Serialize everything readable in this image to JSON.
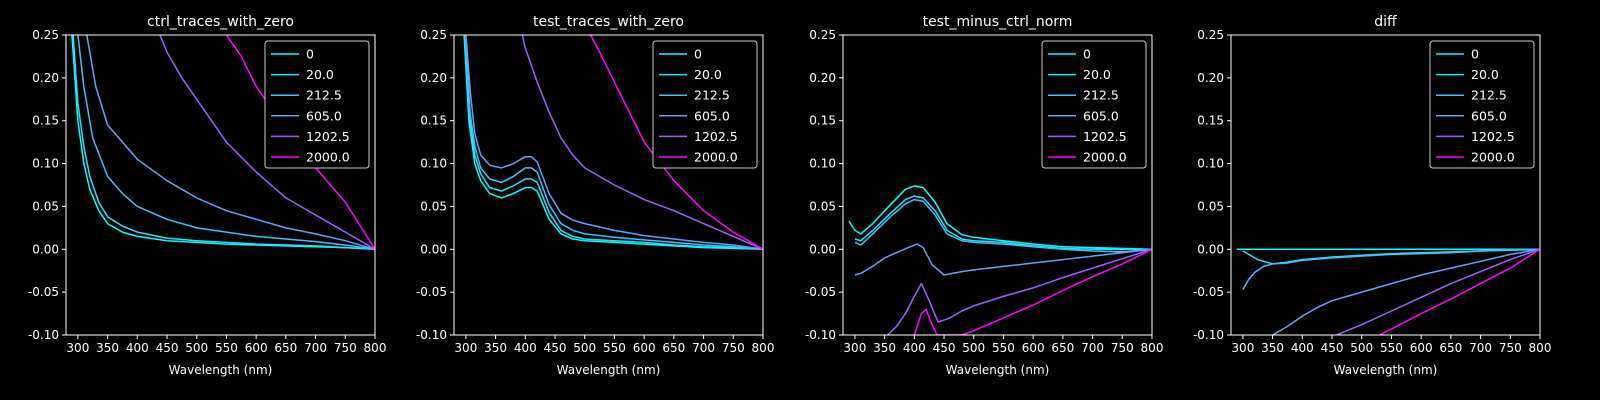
{
  "colors": {
    "background": "#000000",
    "axes": "#ffffff",
    "series": [
      "#00ffff",
      "#1ce3ff",
      "#3fc0ff",
      "#5aa5ff",
      "#a35cff",
      "#ff00ff"
    ]
  },
  "chart_data": [
    {
      "type": "line",
      "title": "ctrl_traces_with_zero",
      "xlabel": "Wavelength (nm)",
      "ylabel": "",
      "xlim": [
        280,
        800
      ],
      "ylim": [
        -0.1,
        0.25
      ],
      "xticks": [
        300,
        350,
        400,
        450,
        500,
        550,
        600,
        650,
        700,
        750,
        800
      ],
      "yticks": [
        -0.1,
        -0.05,
        0.0,
        0.05,
        0.1,
        0.15,
        0.2,
        0.25
      ],
      "grid": false,
      "legend": "top-right",
      "series": [
        {
          "name": "0",
          "x": [
            290,
            300,
            310,
            320,
            335,
            350,
            375,
            400,
            450,
            500,
            550,
            600,
            650,
            700,
            750,
            800
          ],
          "y": [
            0.25,
            0.15,
            0.1,
            0.07,
            0.045,
            0.03,
            0.02,
            0.015,
            0.01,
            0.008,
            0.006,
            0.005,
            0.004,
            0.003,
            0.002,
            0.0
          ]
        },
        {
          "name": "20.0",
          "x": [
            292,
            300,
            310,
            320,
            335,
            350,
            375,
            400,
            450,
            500,
            550,
            600,
            650,
            700,
            750,
            800
          ],
          "y": [
            0.25,
            0.17,
            0.12,
            0.085,
            0.055,
            0.038,
            0.027,
            0.02,
            0.013,
            0.01,
            0.008,
            0.006,
            0.005,
            0.004,
            0.002,
            0.0
          ]
        },
        {
          "name": "212.5",
          "x": [
            300,
            310,
            325,
            350,
            375,
            400,
            450,
            500,
            550,
            600,
            650,
            700,
            750,
            800
          ],
          "y": [
            0.25,
            0.19,
            0.13,
            0.085,
            0.065,
            0.05,
            0.035,
            0.025,
            0.02,
            0.015,
            0.012,
            0.009,
            0.005,
            0.0
          ]
        },
        {
          "name": "605.0",
          "x": [
            315,
            330,
            350,
            375,
            400,
            450,
            500,
            550,
            600,
            650,
            700,
            750,
            800
          ],
          "y": [
            0.25,
            0.19,
            0.145,
            0.125,
            0.105,
            0.08,
            0.06,
            0.045,
            0.035,
            0.025,
            0.018,
            0.01,
            0.0
          ]
        },
        {
          "name": "1202.5",
          "x": [
            438,
            450,
            475,
            500,
            550,
            600,
            650,
            700,
            750,
            800
          ],
          "y": [
            0.25,
            0.23,
            0.2,
            0.175,
            0.125,
            0.09,
            0.06,
            0.04,
            0.02,
            0.0
          ]
        },
        {
          "name": "2000.0",
          "x": [
            550,
            575,
            600,
            650,
            700,
            750,
            800
          ],
          "y": [
            0.25,
            0.225,
            0.19,
            0.14,
            0.095,
            0.055,
            0.0
          ]
        }
      ]
    },
    {
      "type": "line",
      "title": "test_traces_with_zero",
      "xlabel": "Wavelength (nm)",
      "ylabel": "",
      "xlim": [
        280,
        800
      ],
      "ylim": [
        -0.1,
        0.25
      ],
      "xticks": [
        300,
        350,
        400,
        450,
        500,
        550,
        600,
        650,
        700,
        750,
        800
      ],
      "yticks": [
        -0.1,
        -0.05,
        0.0,
        0.05,
        0.1,
        0.15,
        0.2,
        0.25
      ],
      "grid": false,
      "legend": "top-right",
      "series": [
        {
          "name": "0",
          "x": [
            297,
            305,
            315,
            325,
            340,
            360,
            380,
            400,
            410,
            420,
            440,
            460,
            480,
            500,
            550,
            600,
            650,
            700,
            750,
            800
          ],
          "y": [
            0.25,
            0.15,
            0.1,
            0.08,
            0.065,
            0.06,
            0.065,
            0.072,
            0.072,
            0.068,
            0.035,
            0.018,
            0.012,
            0.01,
            0.008,
            0.006,
            0.004,
            0.002,
            0.001,
            0.0
          ]
        },
        {
          "name": "20.0",
          "x": [
            298,
            305,
            315,
            325,
            340,
            360,
            380,
            400,
            410,
            420,
            440,
            460,
            480,
            500,
            550,
            600,
            650,
            700,
            750,
            800
          ],
          "y": [
            0.25,
            0.16,
            0.11,
            0.088,
            0.072,
            0.068,
            0.074,
            0.082,
            0.082,
            0.078,
            0.043,
            0.022,
            0.015,
            0.012,
            0.01,
            0.008,
            0.005,
            0.003,
            0.002,
            0.0
          ]
        },
        {
          "name": "212.5",
          "x": [
            299,
            307,
            315,
            325,
            340,
            360,
            380,
            400,
            410,
            420,
            440,
            460,
            480,
            500,
            550,
            600,
            650,
            700,
            750,
            800
          ],
          "y": [
            0.25,
            0.16,
            0.12,
            0.095,
            0.082,
            0.078,
            0.085,
            0.095,
            0.095,
            0.09,
            0.052,
            0.03,
            0.022,
            0.018,
            0.014,
            0.011,
            0.008,
            0.005,
            0.003,
            0.0
          ]
        },
        {
          "name": "605.0",
          "x": [
            300,
            308,
            315,
            325,
            340,
            360,
            380,
            400,
            410,
            420,
            440,
            460,
            480,
            500,
            550,
            600,
            650,
            700,
            750,
            800
          ],
          "y": [
            0.25,
            0.18,
            0.135,
            0.11,
            0.098,
            0.095,
            0.1,
            0.108,
            0.108,
            0.102,
            0.065,
            0.042,
            0.034,
            0.03,
            0.022,
            0.016,
            0.012,
            0.008,
            0.005,
            0.0
          ]
        },
        {
          "name": "1202.5",
          "x": [
            395,
            400,
            420,
            440,
            460,
            480,
            500,
            550,
            600,
            650,
            700,
            750,
            800
          ],
          "y": [
            0.25,
            0.235,
            0.195,
            0.16,
            0.13,
            0.11,
            0.095,
            0.075,
            0.058,
            0.045,
            0.03,
            0.015,
            0.0
          ]
        },
        {
          "name": "2000.0",
          "x": [
            510,
            525,
            550,
            575,
            600,
            650,
            700,
            750,
            800
          ],
          "y": [
            0.25,
            0.23,
            0.195,
            0.16,
            0.125,
            0.08,
            0.045,
            0.02,
            0.0
          ]
        }
      ]
    },
    {
      "type": "line",
      "title": "test_minus_ctrl_norm",
      "xlabel": "Wavelength (nm)",
      "ylabel": "",
      "xlim": [
        280,
        800
      ],
      "ylim": [
        -0.1,
        0.25
      ],
      "xticks": [
        300,
        350,
        400,
        450,
        500,
        550,
        600,
        650,
        700,
        750,
        800
      ],
      "yticks": [
        -0.1,
        -0.05,
        0.0,
        0.05,
        0.1,
        0.15,
        0.2,
        0.25
      ],
      "grid": false,
      "legend": "top-right",
      "series": [
        {
          "name": "0",
          "x": [
            290,
            300,
            310,
            330,
            360,
            385,
            400,
            415,
            435,
            455,
            480,
            500,
            550,
            600,
            650,
            700,
            750,
            800
          ],
          "y": [
            0.033,
            0.022,
            0.018,
            0.03,
            0.052,
            0.07,
            0.074,
            0.072,
            0.055,
            0.03,
            0.017,
            0.014,
            0.01,
            0.006,
            0.003,
            0.002,
            0.001,
            0.0
          ]
        },
        {
          "name": "20.0",
          "x": [
            300,
            310,
            330,
            360,
            385,
            400,
            415,
            435,
            455,
            480,
            500,
            550,
            600,
            650,
            700,
            750,
            800
          ],
          "y": [
            0.012,
            0.01,
            0.022,
            0.042,
            0.058,
            0.062,
            0.06,
            0.045,
            0.022,
            0.012,
            0.01,
            0.008,
            0.004,
            0.001,
            0.0,
            0.0,
            0.0
          ]
        },
        {
          "name": "212.5",
          "x": [
            300,
            310,
            330,
            360,
            385,
            400,
            415,
            435,
            455,
            480,
            500,
            550,
            600,
            650,
            700,
            750,
            800
          ],
          "y": [
            0.008,
            0.005,
            0.018,
            0.038,
            0.053,
            0.058,
            0.056,
            0.04,
            0.018,
            0.01,
            0.008,
            0.006,
            0.003,
            0.0,
            -0.002,
            -0.003,
            0.0
          ]
        },
        {
          "name": "605.0",
          "x": [
            300,
            310,
            330,
            350,
            370,
            390,
            405,
            415,
            430,
            450,
            480,
            500,
            550,
            600,
            650,
            700,
            750,
            800
          ],
          "y": [
            -0.03,
            -0.028,
            -0.02,
            -0.01,
            -0.004,
            0.002,
            0.006,
            0.002,
            -0.018,
            -0.03,
            -0.026,
            -0.024,
            -0.02,
            -0.016,
            -0.012,
            -0.008,
            -0.004,
            0.0
          ]
        },
        {
          "name": "1202.5",
          "x": [
            355,
            370,
            385,
            400,
            412,
            425,
            440,
            460,
            480,
            500,
            550,
            600,
            650,
            700,
            750,
            800
          ],
          "y": [
            -0.1,
            -0.09,
            -0.075,
            -0.055,
            -0.04,
            -0.06,
            -0.085,
            -0.08,
            -0.072,
            -0.066,
            -0.055,
            -0.045,
            -0.033,
            -0.022,
            -0.011,
            0.0
          ]
        },
        {
          "name": "2000.0",
          "x": [
            400,
            412,
            420,
            428,
            438,
            480,
            500,
            550,
            600,
            650,
            700,
            750,
            800
          ],
          "y": [
            -0.1,
            -0.075,
            -0.07,
            -0.085,
            -0.1,
            -0.1,
            -0.095,
            -0.08,
            -0.065,
            -0.048,
            -0.032,
            -0.017,
            0.0
          ]
        }
      ]
    },
    {
      "type": "line",
      "title": "diff",
      "xlabel": "Wavelength (nm)",
      "ylabel": "",
      "xlim": [
        280,
        800
      ],
      "ylim": [
        -0.1,
        0.25
      ],
      "xticks": [
        300,
        350,
        400,
        450,
        500,
        550,
        600,
        650,
        700,
        750,
        800
      ],
      "yticks": [
        -0.1,
        -0.05,
        0.0,
        0.05,
        0.1,
        0.15,
        0.2,
        0.25
      ],
      "grid": false,
      "legend": "top-right",
      "series": [
        {
          "name": "0",
          "x": [
            290,
            800
          ],
          "y": [
            0.0,
            0.0
          ]
        },
        {
          "name": "20.0",
          "x": [
            300,
            310,
            325,
            350,
            375,
            400,
            450,
            500,
            550,
            600,
            650,
            700,
            750,
            800
          ],
          "y": [
            -0.002,
            -0.006,
            -0.012,
            -0.017,
            -0.015,
            -0.012,
            -0.009,
            -0.007,
            -0.005,
            -0.004,
            -0.003,
            -0.002,
            -0.001,
            0.0
          ]
        },
        {
          "name": "212.5",
          "x": [
            300,
            310,
            320,
            335,
            350,
            375,
            400,
            450,
            500,
            550,
            600,
            650,
            700,
            750,
            800
          ],
          "y": [
            -0.047,
            -0.035,
            -0.027,
            -0.02,
            -0.017,
            -0.016,
            -0.013,
            -0.01,
            -0.008,
            -0.006,
            -0.005,
            -0.004,
            -0.002,
            -0.001,
            0.0
          ]
        },
        {
          "name": "605.0",
          "x": [
            350,
            375,
            400,
            425,
            450,
            500,
            550,
            600,
            650,
            700,
            750,
            800
          ],
          "y": [
            -0.1,
            -0.09,
            -0.078,
            -0.068,
            -0.06,
            -0.05,
            -0.04,
            -0.03,
            -0.022,
            -0.014,
            -0.006,
            0.0
          ]
        },
        {
          "name": "1202.5",
          "x": [
            458,
            475,
            500,
            550,
            600,
            650,
            700,
            750,
            800
          ],
          "y": [
            -0.1,
            -0.095,
            -0.088,
            -0.072,
            -0.056,
            -0.04,
            -0.026,
            -0.012,
            0.0
          ]
        },
        {
          "name": "2000.0",
          "x": [
            530,
            550,
            575,
            600,
            650,
            700,
            750,
            800
          ],
          "y": [
            -0.1,
            -0.093,
            -0.084,
            -0.075,
            -0.058,
            -0.04,
            -0.022,
            0.0
          ]
        }
      ]
    }
  ]
}
